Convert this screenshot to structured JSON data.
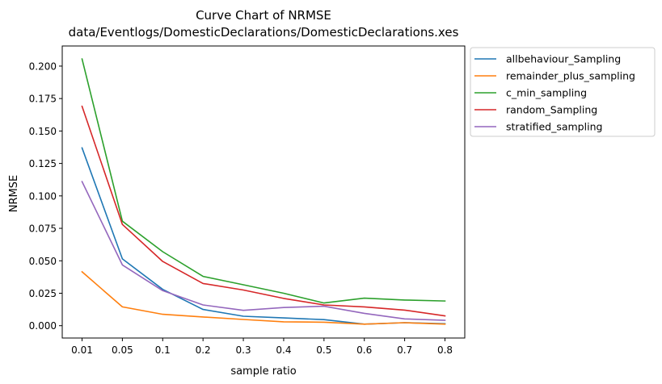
{
  "chart_data": {
    "type": "line",
    "title": "Curve Chart of NRMSE",
    "subtitle": "data/Eventlogs/DomesticDeclarations/DomesticDeclarations.xes",
    "xlabel": "sample ratio",
    "ylabel": "NRMSE",
    "categories": [
      "0.01",
      "0.05",
      "0.1",
      "0.2",
      "0.3",
      "0.4",
      "0.5",
      "0.6",
      "0.7",
      "0.8"
    ],
    "ylim": [
      -0.0095,
      0.2155
    ],
    "yticks": [
      0.0,
      0.025,
      0.05,
      0.075,
      0.1,
      0.125,
      0.15,
      0.175,
      0.2
    ],
    "ytick_labels": [
      "0.000",
      "0.025",
      "0.050",
      "0.075",
      "0.100",
      "0.125",
      "0.150",
      "0.175",
      "0.200"
    ],
    "grid": false,
    "legend_position": "outside-upper-right",
    "series": [
      {
        "name": "allbehaviour_Sampling",
        "color": "#1f77b4",
        "values": [
          0.137,
          0.0515,
          0.028,
          0.0125,
          0.0073,
          0.006,
          0.0047,
          0.0012,
          0.0023,
          0.0015
        ]
      },
      {
        "name": "remainder_plus_sampling",
        "color": "#ff7f0e",
        "values": [
          0.0415,
          0.0145,
          0.0088,
          0.0067,
          0.0048,
          0.003,
          0.0027,
          0.0012,
          0.0023,
          0.0012
        ]
      },
      {
        "name": "c_min_sampling",
        "color": "#2ca02c",
        "values": [
          0.2055,
          0.0805,
          0.057,
          0.038,
          0.0315,
          0.025,
          0.0175,
          0.0212,
          0.0198,
          0.019
        ]
      },
      {
        "name": "random_Sampling",
        "color": "#d62728",
        "values": [
          0.169,
          0.078,
          0.0495,
          0.0325,
          0.0275,
          0.021,
          0.016,
          0.0145,
          0.012,
          0.0075
        ]
      },
      {
        "name": "stratified_sampling",
        "color": "#9467bd",
        "values": [
          0.111,
          0.0468,
          0.027,
          0.016,
          0.0118,
          0.014,
          0.015,
          0.0095,
          0.0052,
          0.0042
        ]
      }
    ]
  }
}
